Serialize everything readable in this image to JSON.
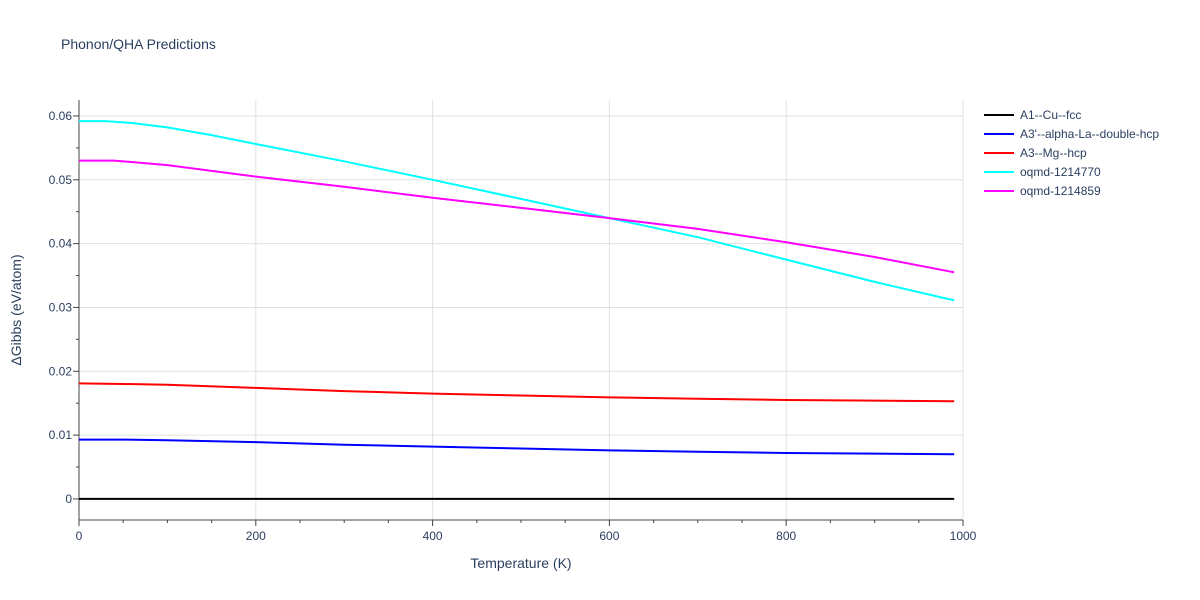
{
  "chart_data": {
    "type": "line",
    "title": "Phonon/QHA Predictions",
    "xlabel": "Temperature (K)",
    "ylabel": "ΔGibbs (eV/atom)",
    "xlim": [
      0,
      1000
    ],
    "ylim": [
      -0.0033,
      0.0625
    ],
    "xticks": [
      0,
      200,
      400,
      600,
      800,
      1000
    ],
    "xtick_labels": [
      "0",
      "200",
      "400",
      "600",
      "800",
      "1000"
    ],
    "yticks": [
      0,
      0.01,
      0.02,
      0.03,
      0.04,
      0.05,
      0.06
    ],
    "ytick_labels": [
      "0",
      "0.01",
      "0.02",
      "0.03",
      "0.04",
      "0.05",
      "0.06"
    ],
    "grid": true,
    "legend_position": "right",
    "series": [
      {
        "name": "A1--Cu--fcc",
        "color": "#000000",
        "x": [
          0,
          100,
          200,
          300,
          400,
          500,
          600,
          700,
          800,
          900,
          990
        ],
        "y": [
          0,
          0,
          0,
          0,
          0,
          0,
          0,
          0,
          0,
          0,
          0
        ]
      },
      {
        "name": "A3'--alpha-La--double-hcp",
        "color": "#0000ff",
        "x": [
          0,
          50,
          100,
          200,
          300,
          400,
          500,
          600,
          700,
          800,
          900,
          990
        ],
        "y": [
          0.0093,
          0.0093,
          0.0092,
          0.0089,
          0.0085,
          0.0082,
          0.0079,
          0.0076,
          0.0074,
          0.0072,
          0.0071,
          0.007
        ]
      },
      {
        "name": "A3--Mg--hcp",
        "color": "#ff0000",
        "x": [
          0,
          50,
          100,
          200,
          300,
          400,
          500,
          600,
          700,
          800,
          900,
          990
        ],
        "y": [
          0.0181,
          0.018,
          0.0179,
          0.0174,
          0.0169,
          0.0165,
          0.0162,
          0.0159,
          0.0157,
          0.0155,
          0.0154,
          0.0153
        ]
      },
      {
        "name": "oqmd-1214770",
        "color": "#00ffff",
        "x": [
          0,
          30,
          60,
          100,
          150,
          200,
          300,
          400,
          500,
          600,
          700,
          800,
          900,
          990
        ],
        "y": [
          0.0592,
          0.0592,
          0.0589,
          0.0582,
          0.057,
          0.0556,
          0.0529,
          0.05,
          0.047,
          0.044,
          0.041,
          0.0375,
          0.034,
          0.0311
        ]
      },
      {
        "name": "oqmd-1214859",
        "color": "#ff00ff",
        "x": [
          0,
          40,
          100,
          200,
          300,
          400,
          500,
          600,
          700,
          800,
          900,
          990
        ],
        "y": [
          0.053,
          0.053,
          0.0523,
          0.0505,
          0.0489,
          0.0472,
          0.0456,
          0.044,
          0.0423,
          0.0402,
          0.0379,
          0.0355
        ]
      }
    ]
  }
}
